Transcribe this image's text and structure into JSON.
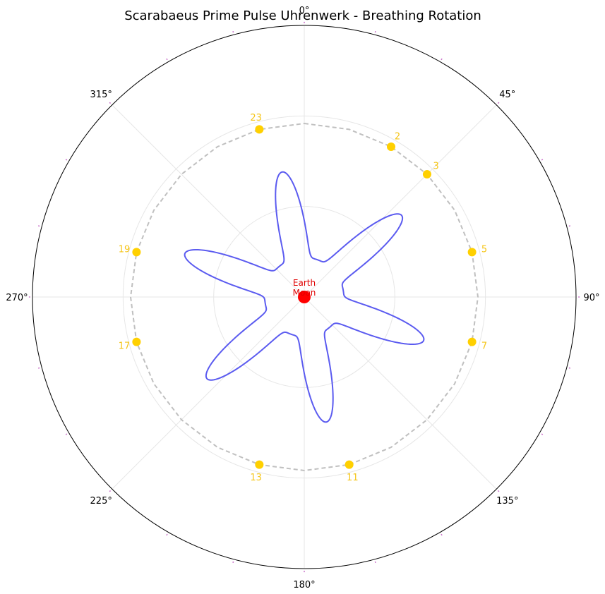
{
  "chart_data": {
    "type": "polar",
    "title": "Scarabaeus Prime Pulse Uhrenwerk - Breathing Rotation",
    "theta_direction": "clockwise",
    "theta_zero": "top",
    "theta_tick_labels": [
      "0°",
      "45°",
      "90°",
      "135°",
      "180°",
      "225°",
      "270°",
      "315°"
    ],
    "theta_ticks_deg": [
      0,
      45,
      90,
      135,
      180,
      225,
      270,
      315
    ],
    "r_lim": [
      0,
      1.5
    ],
    "grid": true,
    "center_label": "Earth\nMoon",
    "center_label_lines": [
      "Earth",
      "Moon"
    ],
    "colors": {
      "pulse_curve": "#5b5bf0",
      "ring": "#c0c0c0",
      "spokes": "#cc77cc",
      "markers": "#ffd000",
      "marker_labels": "#f5c518",
      "center": "#ff0000",
      "grid": "#e6e6e6"
    },
    "series": [
      {
        "kind": "curve",
        "r_base": 0.76,
        "amplitude": 0.44,
        "lobes": 6,
        "phase_deg": 50,
        "power": 3
      },
      {
        "kind": "ring",
        "segments": 24,
        "r": 1.5
      },
      {
        "kind": "spokes",
        "segments": 24,
        "r_from": 1.52,
        "r_to": 2.3
      },
      {
        "kind": "markers",
        "r": 1.5,
        "points": [
          {
            "label": "2",
            "theta_deg": 30
          },
          {
            "label": "3",
            "theta_deg": 45
          },
          {
            "label": "5",
            "theta_deg": 75
          },
          {
            "label": "7",
            "theta_deg": 105
          },
          {
            "label": "11",
            "theta_deg": 165
          },
          {
            "label": "13",
            "theta_deg": 195
          },
          {
            "label": "17",
            "theta_deg": 255
          },
          {
            "label": "19",
            "theta_deg": 285
          },
          {
            "label": "23",
            "theta_deg": 345
          }
        ]
      }
    ]
  }
}
